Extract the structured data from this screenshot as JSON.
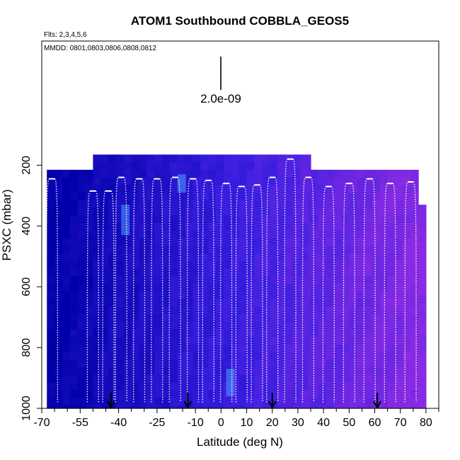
{
  "chart_data": {
    "type": "heatmap",
    "title": "ATOM1 Southbound COBBLA_GEOS5",
    "annotations": {
      "flights": "Flts: 2,3,4,5,6",
      "dates": "MMDD: 0801,0803,0806,0808,0812",
      "scale_value": "2.0e-09"
    },
    "xlabel": "Latitude (deg N)",
    "ylabel": "PSXC (mbar)",
    "xlim": [
      -70,
      85
    ],
    "ylim": [
      1000,
      0
    ],
    "x_ticks": [
      -70,
      -55,
      -40,
      -25,
      -10,
      0,
      10,
      20,
      30,
      40,
      50,
      60,
      70,
      80
    ],
    "y_ticks": [
      200,
      400,
      600,
      800,
      1000
    ],
    "grid": false,
    "colors": {
      "low": "#0000a8",
      "mid": "#3a1ee0",
      "high": "#8a2be2",
      "track": "#ffffff",
      "highlight": "#4aa0ff"
    },
    "field_extent": [
      {
        "lat": [
          -68,
          -50
        ],
        "top": 215
      },
      {
        "lat": [
          -50,
          35
        ],
        "top": 165
      },
      {
        "lat": [
          35,
          77
        ],
        "top": 215
      },
      {
        "lat": [
          77,
          80
        ],
        "top": 330
      }
    ],
    "arrows_lat": [
      -43,
      -13,
      20,
      61
    ],
    "profiles": [
      {
        "lat": -66,
        "top": 245
      },
      {
        "lat": -50,
        "top": 285
      },
      {
        "lat": -44,
        "top": 285
      },
      {
        "lat": -39,
        "top": 240
      },
      {
        "lat": -32,
        "top": 245
      },
      {
        "lat": -25,
        "top": 245
      },
      {
        "lat": -18,
        "top": 240
      },
      {
        "lat": -11,
        "top": 245
      },
      {
        "lat": -5,
        "top": 250
      },
      {
        "lat": 2,
        "top": 260
      },
      {
        "lat": 8,
        "top": 270
      },
      {
        "lat": 14,
        "top": 265
      },
      {
        "lat": 20,
        "top": 240
      },
      {
        "lat": 27,
        "top": 180
      },
      {
        "lat": 34,
        "top": 240
      },
      {
        "lat": 42,
        "top": 270
      },
      {
        "lat": 50,
        "top": 260
      },
      {
        "lat": 58,
        "top": 245
      },
      {
        "lat": 66,
        "top": 260
      },
      {
        "lat": 74,
        "top": 255
      }
    ]
  }
}
